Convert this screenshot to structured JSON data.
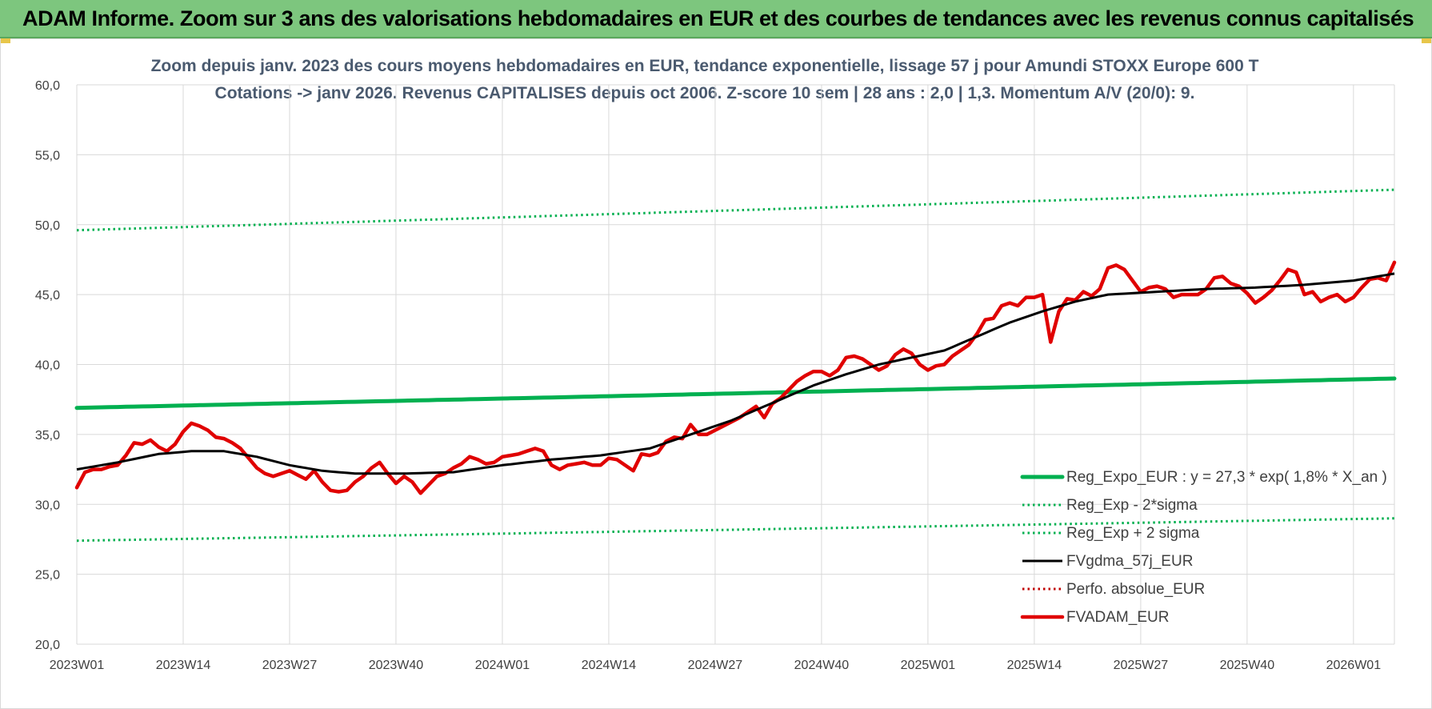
{
  "header": {
    "title": "ADAM Informe. Zoom sur 3 ans des valorisations hebdomadaires en EUR et des courbes de tendances avec les revenus connus capitalisés"
  },
  "chart_data": {
    "type": "line",
    "title": "Zoom depuis janv. 2023 des cours moyens hebdomadaires en EUR, tendance exponentielle, lissage 57 j pour Amundi STOXX Europe 600 T",
    "subtitle": "Cotations -> janv 2026. Revenus CAPITALISES depuis oct 2006. Z-score 10 sem | 28 ans : 2,0 | 1,3. Momentum A/V (20/0): 9.",
    "xlabel": "",
    "ylabel": "",
    "ylim": [
      20,
      60
    ],
    "yticks": [
      "20,0",
      "25,0",
      "30,0",
      "35,0",
      "40,0",
      "45,0",
      "50,0",
      "55,0",
      "60,0"
    ],
    "x_tick_labels": [
      "2023W01",
      "2023W14",
      "2023W27",
      "2023W40",
      "2024W01",
      "2024W14",
      "2024W27",
      "2024W40",
      "2025W01",
      "2025W14",
      "2025W27",
      "2025W40",
      "2026W01"
    ],
    "x_tick_index": [
      0,
      13,
      26,
      39,
      52,
      65,
      78,
      91,
      104,
      117,
      130,
      143,
      156
    ],
    "n_points": 162,
    "grid": true,
    "legend_position": "bottom-right",
    "series": [
      {
        "name": "Reg_Expo_EUR : y = 27,3 * exp( 1,8% *  X_an )",
        "color": "#00b050",
        "style": "solid-thick",
        "start": 36.9,
        "end": 39.0
      },
      {
        "name": "Reg_Exp - 2*sigma",
        "color": "#00b050",
        "style": "dotted",
        "start": 27.4,
        "end": 29.0
      },
      {
        "name": "Reg_Exp + 2 sigma",
        "color": "#00b050",
        "style": "dotted",
        "start": 49.6,
        "end": 52.5
      },
      {
        "name": "FVgdma_57j_EUR",
        "color": "#000000",
        "style": "solid",
        "keypoints": [
          [
            0,
            32.5
          ],
          [
            5,
            33.0
          ],
          [
            10,
            33.6
          ],
          [
            14,
            33.8
          ],
          [
            18,
            33.8
          ],
          [
            22,
            33.4
          ],
          [
            26,
            32.8
          ],
          [
            30,
            32.4
          ],
          [
            34,
            32.2
          ],
          [
            40,
            32.2
          ],
          [
            46,
            32.3
          ],
          [
            52,
            32.8
          ],
          [
            58,
            33.2
          ],
          [
            64,
            33.5
          ],
          [
            70,
            34.0
          ],
          [
            75,
            35.0
          ],
          [
            80,
            36.0
          ],
          [
            86,
            37.5
          ],
          [
            90,
            38.5
          ],
          [
            94,
            39.3
          ],
          [
            98,
            40.0
          ],
          [
            102,
            40.5
          ],
          [
            106,
            41.0
          ],
          [
            110,
            42.0
          ],
          [
            114,
            43.0
          ],
          [
            118,
            43.8
          ],
          [
            122,
            44.5
          ],
          [
            126,
            45.0
          ],
          [
            132,
            45.2
          ],
          [
            138,
            45.4
          ],
          [
            144,
            45.5
          ],
          [
            150,
            45.7
          ],
          [
            156,
            46.0
          ],
          [
            161,
            46.5
          ]
        ]
      },
      {
        "name": "Perfo. absolue_EUR",
        "color": "#c00000",
        "style": "dotted",
        "values": []
      },
      {
        "name": "FVADAM_EUR",
        "color": "#e00000",
        "style": "solid-thick",
        "keypoints": [
          [
            0,
            31.2
          ],
          [
            1,
            32.3
          ],
          [
            2,
            32.5
          ],
          [
            3,
            32.5
          ],
          [
            4,
            32.7
          ],
          [
            5,
            32.8
          ],
          [
            6,
            33.5
          ],
          [
            7,
            34.4
          ],
          [
            8,
            34.3
          ],
          [
            9,
            34.6
          ],
          [
            10,
            34.1
          ],
          [
            11,
            33.8
          ],
          [
            12,
            34.3
          ],
          [
            13,
            35.2
          ],
          [
            14,
            35.8
          ],
          [
            15,
            35.6
          ],
          [
            16,
            35.3
          ],
          [
            17,
            34.8
          ],
          [
            18,
            34.7
          ],
          [
            19,
            34.4
          ],
          [
            20,
            34.0
          ],
          [
            21,
            33.3
          ],
          [
            22,
            32.6
          ],
          [
            23,
            32.2
          ],
          [
            24,
            32.0
          ],
          [
            25,
            32.2
          ],
          [
            26,
            32.4
          ],
          [
            27,
            32.1
          ],
          [
            28,
            31.8
          ],
          [
            29,
            32.4
          ],
          [
            30,
            31.6
          ],
          [
            31,
            31.0
          ],
          [
            32,
            30.9
          ],
          [
            33,
            31.0
          ],
          [
            34,
            31.6
          ],
          [
            35,
            32.0
          ],
          [
            36,
            32.6
          ],
          [
            37,
            33.0
          ],
          [
            38,
            32.2
          ],
          [
            39,
            31.5
          ],
          [
            40,
            32.0
          ],
          [
            41,
            31.6
          ],
          [
            42,
            30.8
          ],
          [
            43,
            31.4
          ],
          [
            44,
            32.0
          ],
          [
            45,
            32.2
          ],
          [
            46,
            32.6
          ],
          [
            47,
            32.9
          ],
          [
            48,
            33.4
          ],
          [
            49,
            33.2
          ],
          [
            50,
            32.9
          ],
          [
            51,
            33.0
          ],
          [
            52,
            33.4
          ],
          [
            53,
            33.5
          ],
          [
            54,
            33.6
          ],
          [
            55,
            33.8
          ],
          [
            56,
            34.0
          ],
          [
            57,
            33.8
          ],
          [
            58,
            32.8
          ],
          [
            59,
            32.5
          ],
          [
            60,
            32.8
          ],
          [
            61,
            32.9
          ],
          [
            62,
            33.0
          ],
          [
            63,
            32.8
          ],
          [
            64,
            32.8
          ],
          [
            65,
            33.3
          ],
          [
            66,
            33.2
          ],
          [
            67,
            32.8
          ],
          [
            68,
            32.4
          ],
          [
            69,
            33.6
          ],
          [
            70,
            33.5
          ],
          [
            71,
            33.7
          ],
          [
            72,
            34.5
          ],
          [
            73,
            34.8
          ],
          [
            74,
            34.7
          ],
          [
            75,
            35.7
          ],
          [
            76,
            35.0
          ],
          [
            77,
            35.0
          ],
          [
            78,
            35.3
          ],
          [
            79,
            35.6
          ],
          [
            80,
            35.9
          ],
          [
            81,
            36.2
          ],
          [
            82,
            36.6
          ],
          [
            83,
            37.0
          ],
          [
            84,
            36.2
          ],
          [
            85,
            37.2
          ],
          [
            86,
            37.6
          ],
          [
            87,
            38.2
          ],
          [
            88,
            38.8
          ],
          [
            89,
            39.2
          ],
          [
            90,
            39.5
          ],
          [
            91,
            39.5
          ],
          [
            92,
            39.2
          ],
          [
            93,
            39.6
          ],
          [
            94,
            40.5
          ],
          [
            95,
            40.6
          ],
          [
            96,
            40.4
          ],
          [
            97,
            40.0
          ],
          [
            98,
            39.6
          ],
          [
            99,
            39.9
          ],
          [
            100,
            40.7
          ],
          [
            101,
            41.1
          ],
          [
            102,
            40.8
          ],
          [
            103,
            40.0
          ],
          [
            104,
            39.6
          ],
          [
            105,
            39.9
          ],
          [
            106,
            40.0
          ],
          [
            107,
            40.6
          ],
          [
            108,
            41.0
          ],
          [
            109,
            41.4
          ],
          [
            110,
            42.2
          ],
          [
            111,
            43.2
          ],
          [
            112,
            43.3
          ],
          [
            113,
            44.2
          ],
          [
            114,
            44.4
          ],
          [
            115,
            44.2
          ],
          [
            116,
            44.8
          ],
          [
            117,
            44.8
          ],
          [
            118,
            45.0
          ],
          [
            119,
            41.6
          ],
          [
            120,
            43.8
          ],
          [
            121,
            44.7
          ],
          [
            122,
            44.6
          ],
          [
            123,
            45.2
          ],
          [
            124,
            44.9
          ],
          [
            125,
            45.4
          ],
          [
            126,
            46.9
          ],
          [
            127,
            47.1
          ],
          [
            128,
            46.8
          ],
          [
            129,
            46.0
          ],
          [
            130,
            45.2
          ],
          [
            131,
            45.5
          ],
          [
            132,
            45.6
          ],
          [
            133,
            45.4
          ],
          [
            134,
            44.8
          ],
          [
            135,
            45.0
          ],
          [
            136,
            45.0
          ],
          [
            137,
            45.0
          ],
          [
            138,
            45.4
          ],
          [
            139,
            46.2
          ],
          [
            140,
            46.3
          ],
          [
            141,
            45.8
          ],
          [
            142,
            45.6
          ],
          [
            143,
            45.1
          ],
          [
            144,
            44.4
          ],
          [
            145,
            44.8
          ],
          [
            146,
            45.3
          ],
          [
            147,
            46.0
          ],
          [
            148,
            46.8
          ],
          [
            149,
            46.6
          ],
          [
            150,
            45.0
          ],
          [
            151,
            45.2
          ],
          [
            152,
            44.5
          ],
          [
            153,
            44.8
          ],
          [
            154,
            45.0
          ],
          [
            155,
            44.5
          ],
          [
            156,
            44.8
          ],
          [
            157,
            45.5
          ],
          [
            158,
            46.1
          ],
          [
            159,
            46.2
          ],
          [
            160,
            46.0
          ],
          [
            161,
            47.3
          ]
        ]
      }
    ]
  }
}
